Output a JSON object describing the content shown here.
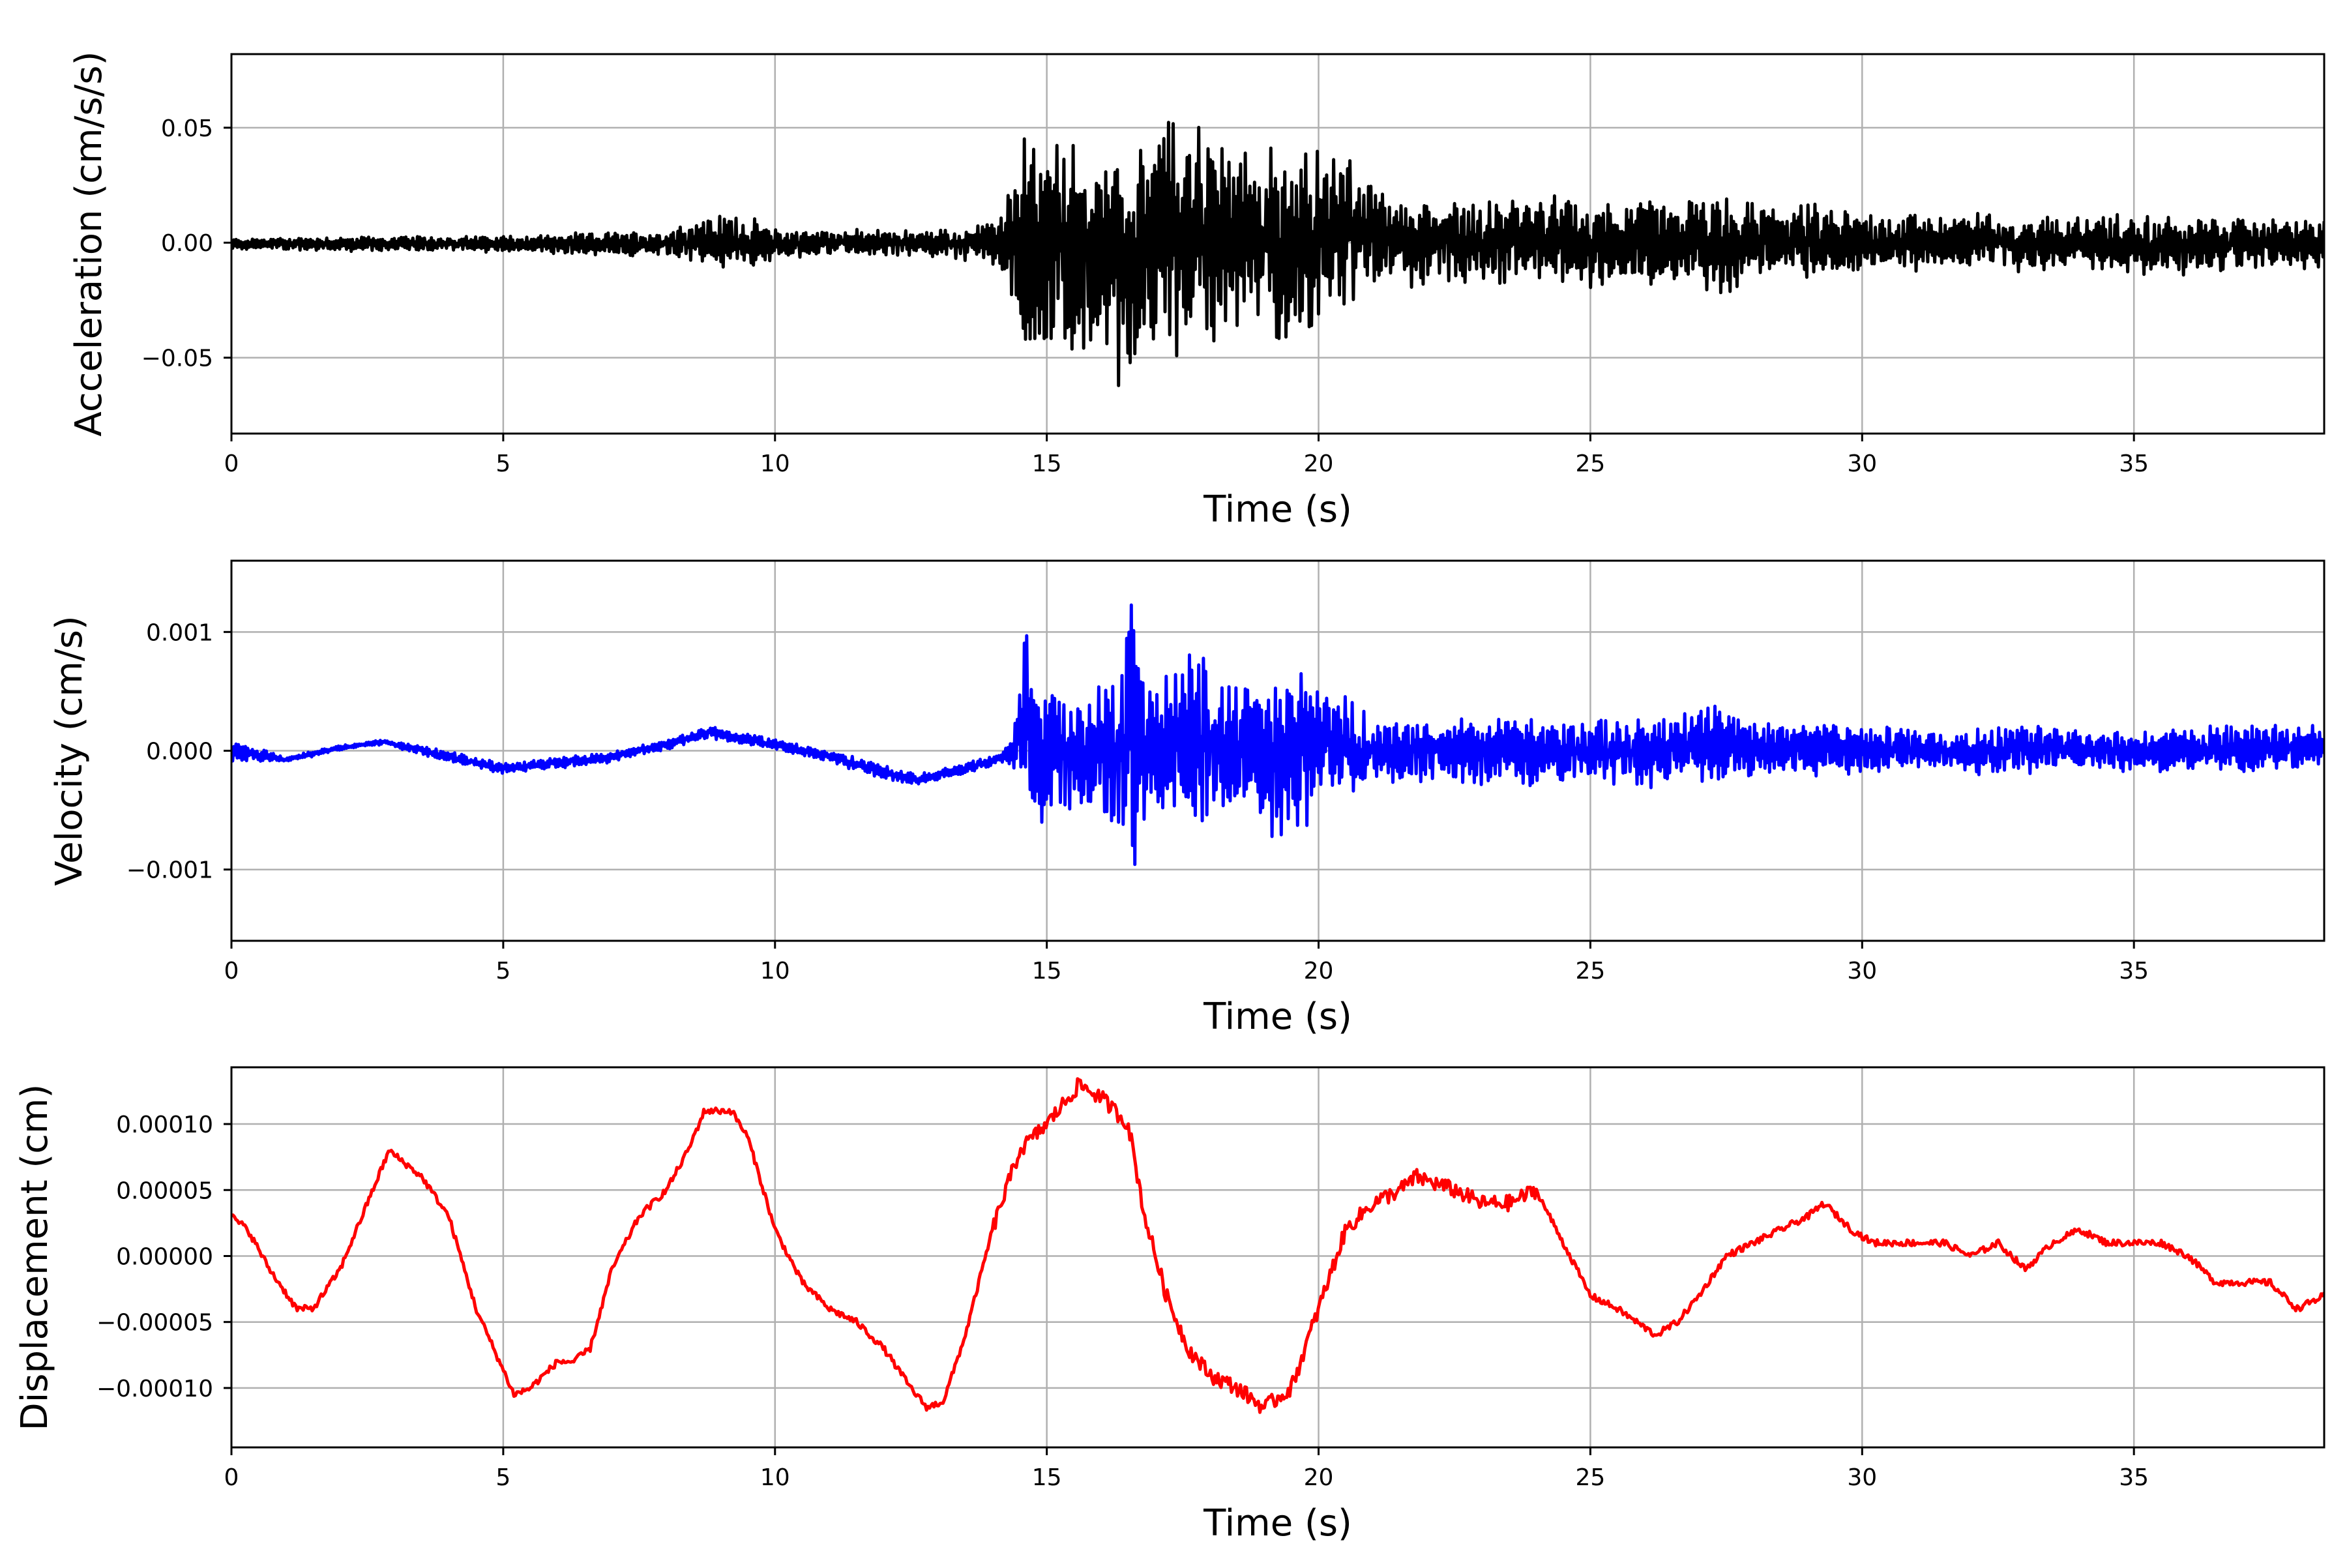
{
  "chart_data": [
    {
      "type": "line",
      "title": "",
      "xlabel": "Time (s)",
      "ylabel": "Acceleration (cm/s/s)",
      "xlim": [
        0,
        38.5
      ],
      "ylim": [
        -0.083,
        0.082
      ],
      "xticks": [
        0,
        5,
        10,
        15,
        20,
        25,
        30,
        35
      ],
      "xtick_labels": [
        "0",
        "5",
        "10",
        "15",
        "20",
        "25",
        "30",
        "35"
      ],
      "yticks": [
        -0.05,
        0,
        0.05
      ],
      "ytick_labels": [
        "−0.05",
        "0.00",
        "0.05"
      ],
      "grid": true,
      "color": "#000000",
      "series": [
        {
          "x": [
            0,
            2,
            4,
            6,
            8,
            8.6,
            9.3,
            10,
            11,
            12,
            13,
            14,
            14.4,
            14.6,
            14.8,
            15.2,
            15.8,
            16.2,
            16.6,
            17.0,
            17.6,
            18.2,
            18.8,
            19.4,
            20.0,
            20.6,
            21,
            22,
            23,
            24,
            25,
            26,
            27,
            27.3,
            28,
            29,
            30,
            31,
            32,
            33,
            34,
            35,
            36,
            37,
            38.5
          ],
          "y": [
            0.002,
            0.003,
            0.003,
            0.004,
            0.006,
            0.012,
            0.014,
            0.007,
            0.006,
            0.006,
            0.006,
            0.009,
            0.035,
            0.062,
            0.045,
            0.05,
            0.043,
            0.05,
            0.058,
            0.058,
            0.06,
            0.05,
            0.043,
            0.045,
            0.045,
            0.044,
            0.026,
            0.02,
            0.02,
            0.022,
            0.02,
            0.022,
            0.02,
            0.023,
            0.018,
            0.018,
            0.015,
            0.014,
            0.014,
            0.012,
            0.014,
            0.013,
            0.012,
            0.012,
            0.012
          ],
          "y_low": [
            -0.003,
            -0.004,
            -0.004,
            -0.005,
            -0.007,
            -0.012,
            -0.013,
            -0.008,
            -0.006,
            -0.006,
            -0.007,
            -0.01,
            -0.035,
            -0.064,
            -0.055,
            -0.05,
            -0.058,
            -0.062,
            -0.076,
            -0.045,
            -0.056,
            -0.045,
            -0.045,
            -0.047,
            -0.04,
            -0.034,
            -0.024,
            -0.02,
            -0.019,
            -0.02,
            -0.02,
            -0.02,
            -0.02,
            -0.026,
            -0.016,
            -0.017,
            -0.015,
            -0.014,
            -0.012,
            -0.014,
            -0.014,
            -0.015,
            -0.015,
            -0.012,
            -0.012
          ]
        }
      ]
    },
    {
      "type": "line",
      "title": "",
      "xlabel": "Time (s)",
      "ylabel": "Velocity (cm/s)",
      "xlim": [
        0,
        38.5
      ],
      "ylim": [
        -0.0016,
        0.0016
      ],
      "xticks": [
        0,
        5,
        10,
        15,
        20,
        25,
        30,
        35
      ],
      "xtick_labels": [
        "0",
        "5",
        "10",
        "15",
        "20",
        "25",
        "30",
        "35"
      ],
      "yticks": [
        -0.001,
        0,
        0.001
      ],
      "ytick_labels": [
        "−0.001",
        "0.000",
        "0.001"
      ],
      "grid": true,
      "color": "#0000ff",
      "series": [
        {
          "x": [
            0,
            1,
            2,
            2.8,
            4,
            5,
            6,
            7,
            8,
            8.8,
            10,
            11,
            12,
            12.6,
            13.5,
            14.2,
            14.4,
            14.6,
            14.8,
            15.2,
            15.8,
            16.2,
            16.6,
            17.0,
            17.6,
            18.2,
            18.8,
            19.4,
            20.0,
            20.6,
            21,
            22,
            23,
            24,
            25,
            26,
            27,
            28,
            29,
            30,
            31,
            32,
            33,
            34,
            35,
            36,
            37,
            38.5
          ],
          "y": [
            0.0001,
            -5e-05,
            5e-05,
            0.0001,
            0.0,
            -0.0001,
            -5e-05,
            0.0,
            0.0001,
            0.00022,
            0.0001,
            0.0,
            -0.0001,
            -0.0002,
            -0.0001,
            0.0,
            0.0002,
            0.00135,
            0.0008,
            0.0006,
            0.0006,
            0.0007,
            0.00148,
            0.0006,
            0.0009,
            0.0008,
            0.0006,
            0.0007,
            0.0008,
            0.0005,
            0.0003,
            0.0003,
            0.0003,
            0.0003,
            0.0003,
            0.0003,
            0.00045,
            0.0003,
            0.0003,
            0.00025,
            0.0002,
            0.0002,
            0.00025,
            0.0002,
            0.0002,
            0.0002,
            0.00025,
            0.00025
          ],
          "y_low": [
            -0.0001,
            -0.0001,
            0.0,
            5e-05,
            -0.0001,
            -0.0002,
            -0.00015,
            -0.0001,
            0.0,
            0.0001,
            0.0,
            -0.0001,
            -0.00025,
            -0.0003,
            -0.0002,
            -0.0001,
            -0.0002,
            -0.0005,
            -0.0008,
            -0.0006,
            -0.0006,
            -0.0008,
            -0.00122,
            -0.0006,
            -0.0007,
            -0.0007,
            -0.0006,
            -0.00095,
            -0.0006,
            -0.0005,
            -0.0003,
            -0.0003,
            -0.0003,
            -0.0003,
            -0.0003,
            -0.00035,
            -0.0003,
            -0.0003,
            -0.00025,
            -0.0002,
            -0.0002,
            -0.00025,
            -0.0002,
            -0.0002,
            -0.0002,
            -0.0002,
            -0.0002,
            -0.0002
          ]
        }
      ]
    },
    {
      "type": "line",
      "title": "",
      "xlabel": "Time (s)",
      "ylabel": "Displacement (cm)",
      "xlim": [
        0,
        38.5
      ],
      "ylim": [
        -0.000145,
        0.000143
      ],
      "xticks": [
        0,
        5,
        10,
        15,
        20,
        25,
        30,
        35
      ],
      "xtick_labels": [
        "0",
        "5",
        "10",
        "15",
        "20",
        "25",
        "30",
        "35"
      ],
      "yticks": [
        -0.0001,
        -5e-05,
        0,
        5e-05,
        0.0001
      ],
      "ytick_labels": [
        "−0.00010",
        "−0.00005",
        "0.00000",
        "0.00005",
        "0.00010"
      ],
      "grid": true,
      "color": "#ff0000",
      "series": [
        {
          "x": [
            0,
            0.3,
            0.7,
            1.2,
            1.5,
            2.0,
            2.5,
            2.9,
            3.5,
            4.0,
            4.5,
            5.2,
            5.5,
            6.0,
            6.3,
            6.6,
            7.0,
            7.5,
            8.0,
            8.4,
            8.7,
            9.2,
            9.5,
            10.0,
            10.5,
            11.0,
            11.5,
            12.0,
            12.5,
            12.8,
            13.1,
            13.5,
            14.0,
            14.5,
            15.0,
            15.6,
            16.0,
            16.5,
            16.8,
            17.2,
            17.6,
            18.0,
            18.5,
            19.0,
            19.5,
            20.0,
            20.5,
            21.0,
            21.5,
            21.8,
            22.5,
            23.0,
            23.5,
            24.0,
            24.5,
            25.0,
            25.5,
            26.2,
            26.6,
            27.0,
            27.5,
            28.0,
            28.5,
            29.0,
            29.3,
            29.8,
            30.2,
            30.8,
            31.5,
            32.0,
            32.5,
            33.0,
            33.5,
            34.0,
            34.5,
            35.0,
            35.5,
            36.0,
            36.5,
            37.0,
            37.5,
            38.0,
            38.5
          ],
          "y": [
            3e-05,
            2e-05,
            -1e-05,
            -4e-05,
            -4e-05,
            -1e-05,
            4e-05,
            8e-05,
            6e-05,
            3e-05,
            -4e-05,
            -0.000105,
            -0.0001,
            -8e-05,
            -8e-05,
            -7e-05,
            -1e-05,
            3e-05,
            5e-05,
            8e-05,
            0.00011,
            0.00011,
            9e-05,
            2e-05,
            -2e-05,
            -4e-05,
            -5e-05,
            -7e-05,
            -0.0001,
            -0.000115,
            -0.00011,
            -6e-05,
            2e-05,
            8e-05,
            0.0001,
            0.00013,
            0.00012,
            0.0001,
            3e-05,
            -3e-05,
            -7e-05,
            -9e-05,
            -0.0001,
            -0.000115,
            -0.0001,
            -4e-05,
            2e-05,
            4e-05,
            5e-05,
            6e-05,
            5e-05,
            4e-05,
            4e-05,
            5e-05,
            1e-05,
            -3e-05,
            -4e-05,
            -6e-05,
            -5e-05,
            -3e-05,
            0.0,
            1e-05,
            2e-05,
            3e-05,
            4e-05,
            2e-05,
            1e-05,
            1e-05,
            1e-05,
            0.0,
            1e-05,
            -1e-05,
            1e-05,
            2e-05,
            1e-05,
            1e-05,
            1e-05,
            0.0,
            -2e-05,
            -2e-05,
            -2e-05,
            -4e-05,
            -3e-05
          ]
        }
      ]
    }
  ]
}
